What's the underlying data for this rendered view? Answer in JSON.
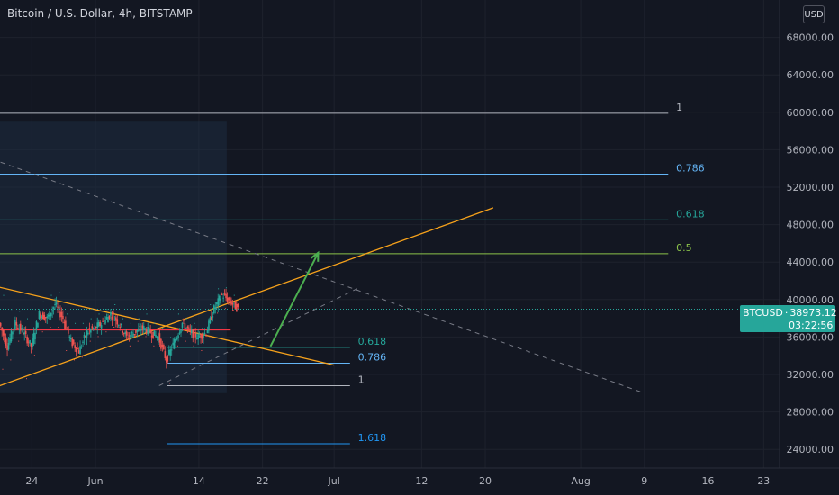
{
  "header": {
    "title": "Bitcoin / U.S. Dollar, 4h, BITSTAMP",
    "currency": "USD"
  },
  "last_price": {
    "symbol": "BTCUSD",
    "price": "38973.12",
    "countdown": "03:22:56",
    "value": 38973.12,
    "color": "#26a69a"
  },
  "colors": {
    "background": "#131722",
    "up": "#26a69a",
    "down": "#ef5350",
    "trend": "#f7a21b",
    "support": "#f23645",
    "arrow": "#4caf50",
    "dashed": "#787b86"
  },
  "chart_data": {
    "type": "candlestick",
    "title": "Bitcoin / U.S. Dollar, 4h, BITSTAMP",
    "ylim": [
      22000,
      72000
    ],
    "y_ticks": [
      "24000.00",
      "28000.00",
      "32000.00",
      "36000.00",
      "40000.00",
      "44000.00",
      "48000.00",
      "52000.00",
      "56000.00",
      "60000.00",
      "64000.00",
      "68000.00"
    ],
    "y_tick_values": [
      24000,
      28000,
      32000,
      36000,
      40000,
      44000,
      48000,
      52000,
      56000,
      60000,
      64000,
      68000
    ],
    "x_ticks": [
      "24",
      "Jun",
      "14",
      "22",
      "Jul",
      "12",
      "20",
      "Aug",
      "9",
      "16",
      "23"
    ],
    "x_tick_days": [
      24,
      32,
      45,
      53,
      62,
      73,
      81,
      93,
      101,
      109,
      116
    ],
    "xlim_days": [
      20,
      118
    ],
    "candles_daily": [
      {
        "day": 20,
        "o": 37500,
        "h": 40500,
        "l": 32500,
        "c": 35000
      },
      {
        "day": 21,
        "o": 35000,
        "h": 39000,
        "l": 33500,
        "c": 37500
      },
      {
        "day": 22,
        "o": 37500,
        "h": 38800,
        "l": 35500,
        "c": 36500
      },
      {
        "day": 23,
        "o": 36500,
        "h": 38000,
        "l": 31500,
        "c": 35000
      },
      {
        "day": 24,
        "o": 35000,
        "h": 39000,
        "l": 34000,
        "c": 38500
      },
      {
        "day": 25,
        "o": 38500,
        "h": 39800,
        "l": 36500,
        "c": 38000
      },
      {
        "day": 26,
        "o": 38000,
        "h": 40500,
        "l": 37000,
        "c": 39500
      },
      {
        "day": 27,
        "o": 39500,
        "h": 40800,
        "l": 37000,
        "c": 38000
      },
      {
        "day": 28,
        "o": 38000,
        "h": 38500,
        "l": 34500,
        "c": 35500
      },
      {
        "day": 29,
        "o": 35500,
        "h": 37500,
        "l": 33500,
        "c": 34500
      },
      {
        "day": 30,
        "o": 34500,
        "h": 37500,
        "l": 33800,
        "c": 36500
      },
      {
        "day": 31,
        "o": 36500,
        "h": 38000,
        "l": 35500,
        "c": 37000
      },
      {
        "day": 32,
        "o": 37000,
        "h": 38500,
        "l": 36000,
        "c": 37500
      },
      {
        "day": 33,
        "o": 37500,
        "h": 39000,
        "l": 36500,
        "c": 38500
      },
      {
        "day": 34,
        "o": 38500,
        "h": 39500,
        "l": 37000,
        "c": 37500
      },
      {
        "day": 35,
        "o": 37500,
        "h": 38000,
        "l": 35500,
        "c": 36000
      },
      {
        "day": 36,
        "o": 36000,
        "h": 37500,
        "l": 35000,
        "c": 36500
      },
      {
        "day": 37,
        "o": 36500,
        "h": 38000,
        "l": 35500,
        "c": 37000
      },
      {
        "day": 38,
        "o": 37000,
        "h": 38500,
        "l": 36000,
        "c": 36500
      },
      {
        "day": 39,
        "o": 36500,
        "h": 37500,
        "l": 35000,
        "c": 36000
      },
      {
        "day": 40,
        "o": 36000,
        "h": 37000,
        "l": 32000,
        "c": 33500
      },
      {
        "day": 41,
        "o": 33500,
        "h": 36000,
        "l": 31000,
        "c": 35500
      },
      {
        "day": 42,
        "o": 35500,
        "h": 38500,
        "l": 35000,
        "c": 37500
      },
      {
        "day": 43,
        "o": 37500,
        "h": 38000,
        "l": 35500,
        "c": 36500
      },
      {
        "day": 44,
        "o": 36500,
        "h": 37500,
        "l": 35000,
        "c": 36000
      },
      {
        "day": 45,
        "o": 36000,
        "h": 37000,
        "l": 34500,
        "c": 36500
      },
      {
        "day": 46,
        "o": 36500,
        "h": 39500,
        "l": 36000,
        "c": 39000
      },
      {
        "day": 47,
        "o": 39000,
        "h": 41200,
        "l": 38500,
        "c": 40500
      },
      {
        "day": 48,
        "o": 40500,
        "h": 41300,
        "l": 39000,
        "c": 39800
      },
      {
        "day": 49,
        "o": 39800,
        "h": 40500,
        "l": 38800,
        "c": 38973.12
      }
    ],
    "boxes": [
      {
        "day_start": 20,
        "day_end": 48.5,
        "price_top": 59000,
        "price_bottom": 30000
      }
    ],
    "lines": [
      {
        "role": "descending-trendline",
        "kind": "trend",
        "p1": {
          "day": 19,
          "price": 41500
        },
        "p2": {
          "day": 62,
          "price": 33000
        }
      },
      {
        "role": "ascending-trendline",
        "kind": "trend",
        "p1": {
          "day": 19,
          "price": 30500
        },
        "p2": {
          "day": 82,
          "price": 49800
        }
      },
      {
        "role": "support-line",
        "kind": "support",
        "p1": {
          "day": 20,
          "price": 36800
        },
        "p2": {
          "day": 49,
          "price": 36800
        }
      },
      {
        "role": "dashed-descending-line",
        "kind": "dashed",
        "p1": {
          "day": 19,
          "price": 55000
        },
        "p2": {
          "day": 101,
          "price": 30000
        }
      },
      {
        "role": "dashed-ascending-line",
        "kind": "dashed",
        "p1": {
          "day": 40,
          "price": 30800
        },
        "p2": {
          "day": 65,
          "price": 41200
        }
      }
    ],
    "arrow": {
      "p1": {
        "day": 54,
        "price": 35000
      },
      "p2": {
        "day": 60,
        "price": 45000
      }
    },
    "fib_large": {
      "day_start": 20,
      "day_end": 104,
      "label_day": 105,
      "levels": [
        {
          "label": "1",
          "price": 59900,
          "color": "#b2b5be"
        },
        {
          "label": "0.786",
          "price": 53400,
          "color": "#64b5f6"
        },
        {
          "label": "0.618",
          "price": 48500,
          "color": "#26a69a"
        },
        {
          "label": "0.5",
          "price": 44900,
          "color": "#8bc34a"
        }
      ]
    },
    "fib_small": {
      "day_start": 41,
      "day_end": 64,
      "label_day": 65,
      "levels": [
        {
          "label": "0.618",
          "price": 34900,
          "color": "#26a69a"
        },
        {
          "label": "0.786",
          "price": 33200,
          "color": "#64b5f6"
        },
        {
          "label": "1",
          "price": 30800,
          "color": "#b2b5be"
        },
        {
          "label": "1.618",
          "price": 24600,
          "color": "#2196f3"
        }
      ]
    }
  }
}
